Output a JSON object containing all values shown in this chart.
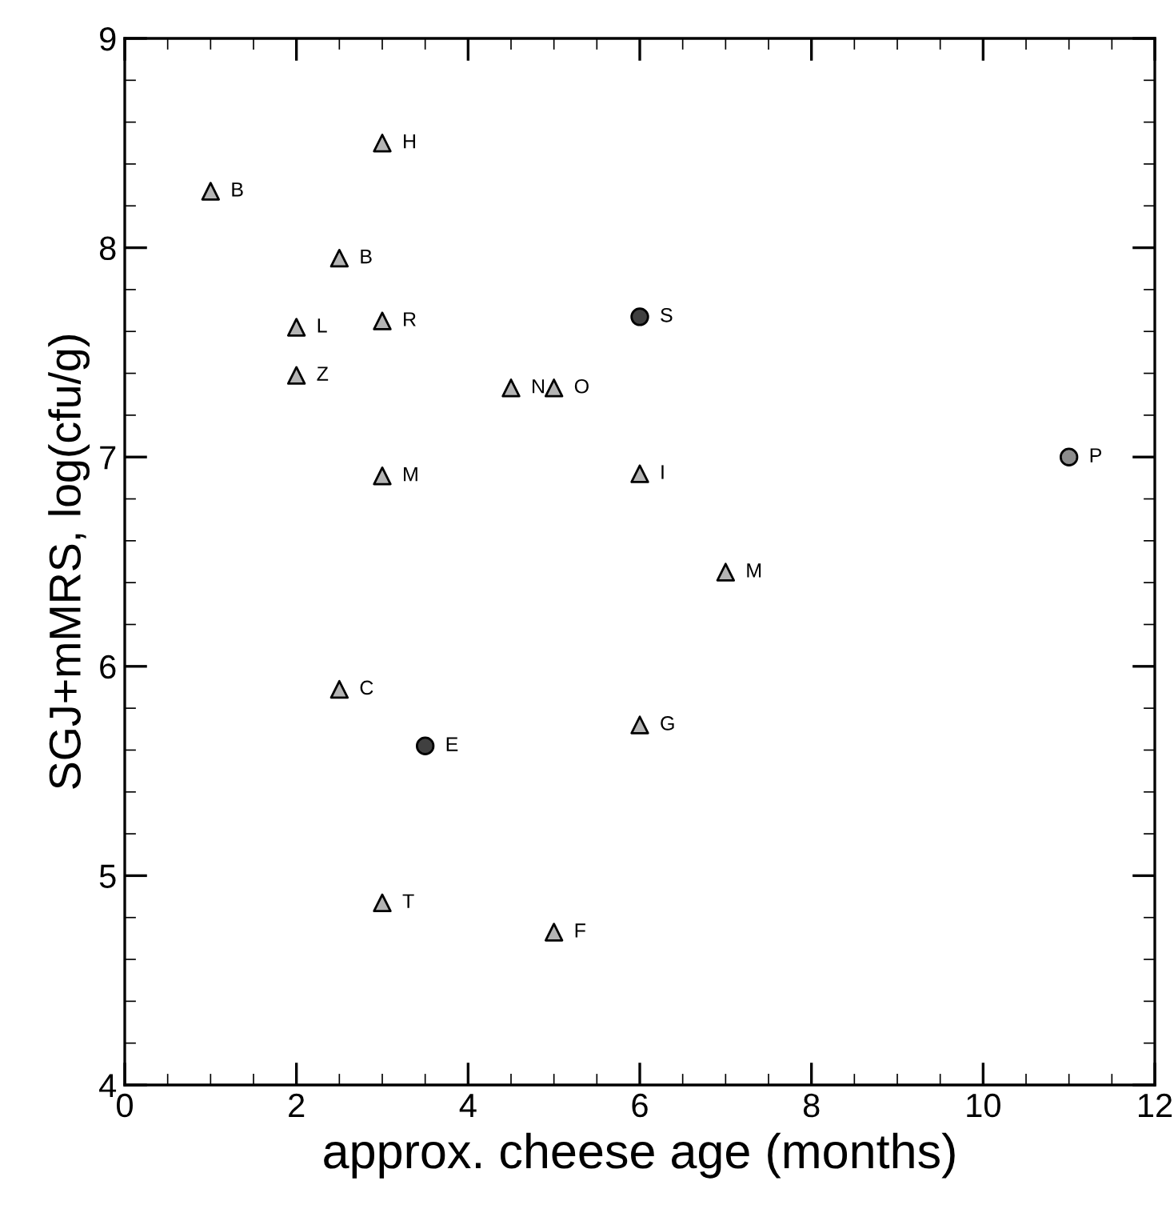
{
  "chart_data": {
    "type": "scatter",
    "xlabel": "approx. cheese age (months)",
    "ylabel": "SGJ+mMRS, log(cfu/g)",
    "xlim": [
      0,
      12
    ],
    "ylim": [
      4,
      9
    ],
    "xticks": [
      0,
      2,
      4,
      6,
      8,
      10,
      12
    ],
    "yticks": [
      4,
      5,
      6,
      7,
      8,
      9
    ],
    "grid": false,
    "legend": false,
    "series": [
      {
        "marker": "triangle",
        "color": "#b4b4b4",
        "x": [
          1,
          3,
          2.5,
          2,
          3,
          2,
          3,
          4.5,
          5,
          6,
          7,
          2.5,
          6,
          3,
          5
        ],
        "values": [
          8.27,
          8.5,
          7.95,
          7.62,
          7.65,
          7.39,
          6.91,
          7.33,
          7.33,
          6.92,
          6.45,
          5.89,
          5.72,
          4.87,
          4.73
        ]
      },
      {
        "marker": "circle",
        "color": "#404040",
        "x": [
          6,
          3.5
        ],
        "values": [
          7.67,
          5.62
        ]
      },
      {
        "marker": "circle",
        "color": "#8c8c8c",
        "x": [
          11
        ],
        "values": [
          7.0
        ]
      }
    ],
    "annotations": [
      {
        "text": "B",
        "x": 1,
        "y": 8.27
      },
      {
        "text": "H",
        "x": 3,
        "y": 8.5
      },
      {
        "text": "B",
        "x": 2.5,
        "y": 7.95
      },
      {
        "text": "L",
        "x": 2,
        "y": 7.62
      },
      {
        "text": "R",
        "x": 3,
        "y": 7.65
      },
      {
        "text": "Z",
        "x": 2,
        "y": 7.39
      },
      {
        "text": "M",
        "x": 3,
        "y": 6.91
      },
      {
        "text": "N",
        "x": 4.5,
        "y": 7.33
      },
      {
        "text": "O",
        "x": 5,
        "y": 7.33
      },
      {
        "text": "I",
        "x": 6,
        "y": 6.92
      },
      {
        "text": "M",
        "x": 7,
        "y": 6.45
      },
      {
        "text": "C",
        "x": 2.5,
        "y": 5.89
      },
      {
        "text": "G",
        "x": 6,
        "y": 5.72
      },
      {
        "text": "T",
        "x": 3,
        "y": 4.87
      },
      {
        "text": "F",
        "x": 5,
        "y": 4.73
      },
      {
        "text": "S",
        "x": 6,
        "y": 7.67
      },
      {
        "text": "E",
        "x": 3.5,
        "y": 5.62
      },
      {
        "text": "P",
        "x": 11,
        "y": 7.0
      }
    ]
  }
}
